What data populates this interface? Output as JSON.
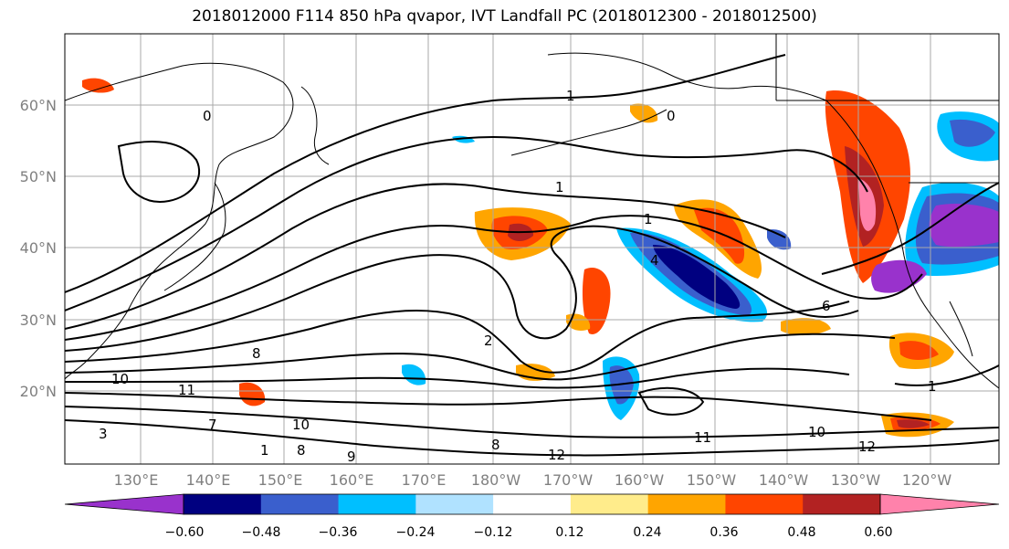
{
  "title": "2018012000 F114 850 hPa qvapor, IVT Landfall PC (2018012300 - 2018012500)",
  "latitude_labels": [
    "60°N",
    "50°N",
    "40°N",
    "30°N",
    "20°N"
  ],
  "longitude_labels": [
    "130°E",
    "140°E",
    "150°E",
    "160°E",
    "170°E",
    "180°W",
    "170°W",
    "160°W",
    "150°W",
    "140°W",
    "130°W",
    "120°W"
  ],
  "colorbar": {
    "tick_labels": [
      "−0.60",
      "−0.48",
      "−0.36",
      "−0.24",
      "−0.12",
      "0.12",
      "0.24",
      "0.36",
      "0.48",
      "0.60"
    ],
    "colors": [
      "#9932cc",
      "#000080",
      "#3a5fcd",
      "#00bfff",
      "#b0e2ff",
      "#ffffff",
      "#ffec8b",
      "#ffa500",
      "#ff4500",
      "#b22222",
      "#ff82ab"
    ]
  },
  "contour_labels": [
    "1",
    "1",
    "1",
    "0",
    "0",
    "4",
    "6",
    "2",
    "8",
    "10",
    "11",
    "10",
    "9",
    "8",
    "7",
    "1",
    "12",
    "11",
    "10",
    "12",
    "1",
    "8",
    "3"
  ],
  "colors": {
    "coast": "#000000",
    "grid": "#a9a9a9",
    "contour": "#000000"
  }
}
